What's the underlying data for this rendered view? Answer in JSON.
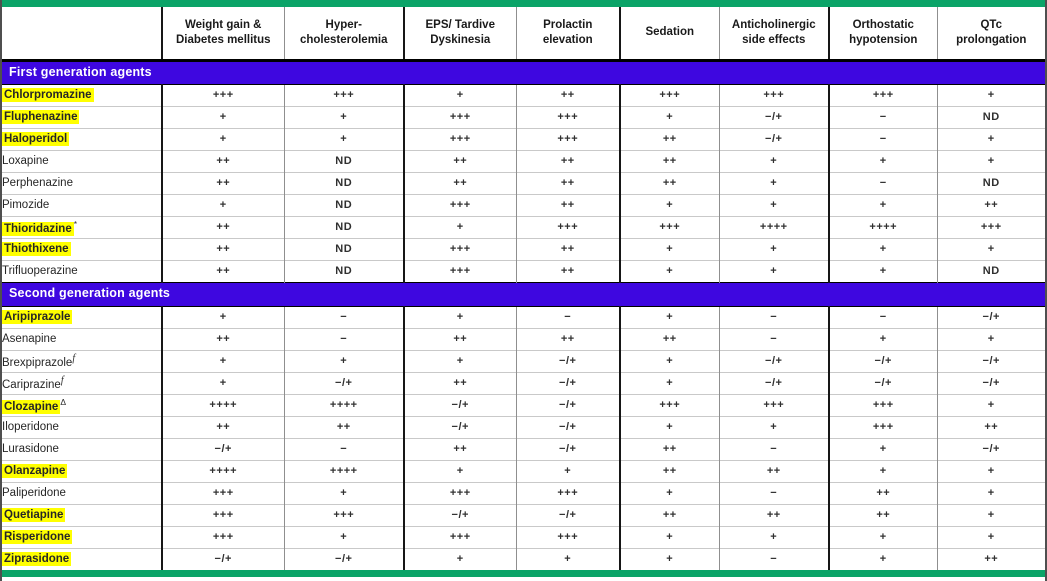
{
  "table": {
    "name": "antipsychotic-side-effect-profile",
    "columns": [
      "",
      "Weight gain &\nDiabetes mellitus",
      "Hyper-\ncholesterolemia",
      "EPS/ Tardive\nDyskinesia",
      "Prolactin\nelevation",
      "Sedation",
      "Anticholinergic\nside effects",
      "Orthostatic\nhypotension",
      "QTc\nprolongation"
    ],
    "sections": [
      {
        "label": "First generation agents",
        "rows": [
          {
            "drug": "Chlorpromazine",
            "highlighted": true,
            "sup": "",
            "values": [
              "+++",
              "+++",
              "+",
              "++",
              "+++",
              "+++",
              "+++",
              "+"
            ]
          },
          {
            "drug": "Fluphenazine",
            "highlighted": true,
            "sup": "",
            "values": [
              "+",
              "+",
              "+++",
              "+++",
              "+",
              "−/+",
              "−",
              "ND"
            ]
          },
          {
            "drug": "Haloperidol",
            "highlighted": true,
            "sup": "",
            "values": [
              "+",
              "+",
              "+++",
              "+++",
              "++",
              "−/+",
              "−",
              "+"
            ]
          },
          {
            "drug": "Loxapine",
            "highlighted": false,
            "sup": "",
            "values": [
              "++",
              "ND",
              "++",
              "++",
              "++",
              "+",
              "+",
              "+"
            ]
          },
          {
            "drug": "Perphenazine",
            "highlighted": false,
            "sup": "",
            "values": [
              "++",
              "ND",
              "++",
              "++",
              "++",
              "+",
              "−",
              "ND"
            ]
          },
          {
            "drug": "Pimozide",
            "highlighted": false,
            "sup": "",
            "values": [
              "+",
              "ND",
              "+++",
              "++",
              "+",
              "+",
              "+",
              "++"
            ]
          },
          {
            "drug": "Thioridazine",
            "highlighted": true,
            "sup": "*",
            "values": [
              "++",
              "ND",
              "+",
              "+++",
              "+++",
              "++++",
              "++++",
              "+++"
            ]
          },
          {
            "drug": "Thiothixene",
            "highlighted": true,
            "sup": "",
            "values": [
              "++",
              "ND",
              "+++",
              "++",
              "+",
              "+",
              "+",
              "+"
            ]
          },
          {
            "drug": "Trifluoperazine",
            "highlighted": false,
            "sup": "",
            "values": [
              "++",
              "ND",
              "+++",
              "++",
              "+",
              "+",
              "+",
              "ND"
            ]
          }
        ]
      },
      {
        "label": "Second generation agents",
        "rows": [
          {
            "drug": "Aripiprazole",
            "highlighted": true,
            "sup": "",
            "values": [
              "+",
              "−",
              "+",
              "−",
              "+",
              "−",
              "−",
              "−/+"
            ]
          },
          {
            "drug": "Asenapine",
            "highlighted": false,
            "sup": "",
            "values": [
              "++",
              "−",
              "++",
              "++",
              "++",
              "−",
              "+",
              "+"
            ]
          },
          {
            "drug": "Brexpiprazole",
            "highlighted": false,
            "sup": "f",
            "values": [
              "+",
              "+",
              "+",
              "−/+",
              "+",
              "−/+",
              "−/+",
              "−/+"
            ]
          },
          {
            "drug": "Cariprazine",
            "highlighted": false,
            "sup": "f",
            "values": [
              "+",
              "−/+",
              "++",
              "−/+",
              "+",
              "−/+",
              "−/+",
              "−/+"
            ]
          },
          {
            "drug": "Clozapine",
            "highlighted": true,
            "sup": "Δ",
            "values": [
              "++++",
              "++++",
              "−/+",
              "−/+",
              "+++",
              "+++",
              "+++",
              "+"
            ]
          },
          {
            "drug": "Iloperidone",
            "highlighted": false,
            "sup": "",
            "values": [
              "++",
              "++",
              "−/+",
              "−/+",
              "+",
              "+",
              "+++",
              "++"
            ]
          },
          {
            "drug": "Lurasidone",
            "highlighted": false,
            "sup": "",
            "values": [
              "−/+",
              "−",
              "++",
              "−/+",
              "++",
              "−",
              "+",
              "−/+"
            ]
          },
          {
            "drug": "Olanzapine",
            "highlighted": true,
            "sup": "",
            "values": [
              "++++",
              "++++",
              "+",
              "+",
              "++",
              "++",
              "+",
              "+"
            ]
          },
          {
            "drug": "Paliperidone",
            "highlighted": false,
            "sup": "",
            "values": [
              "+++",
              "+",
              "+++",
              "+++",
              "+",
              "−",
              "++",
              "+"
            ]
          },
          {
            "drug": "Quetiapine",
            "highlighted": true,
            "sup": "",
            "values": [
              "+++",
              "+++",
              "−/+",
              "−/+",
              "++",
              "++",
              "++",
              "+"
            ]
          },
          {
            "drug": "Risperidone",
            "highlighted": true,
            "sup": "",
            "values": [
              "+++",
              "+",
              "+++",
              "+++",
              "+",
              "+",
              "+",
              "+"
            ]
          },
          {
            "drug": "Ziprasidone",
            "highlighted": true,
            "sup": "",
            "values": [
              "−/+",
              "−/+",
              "+",
              "+",
              "+",
              "−",
              "+",
              "++"
            ]
          }
        ]
      }
    ]
  },
  "colors": {
    "frame_green": "#0ba468",
    "section_purple": "#3e07e0",
    "highlight_yellow": "#ffff00",
    "header_text": "#1a1a1a",
    "value_text": "#303030"
  }
}
